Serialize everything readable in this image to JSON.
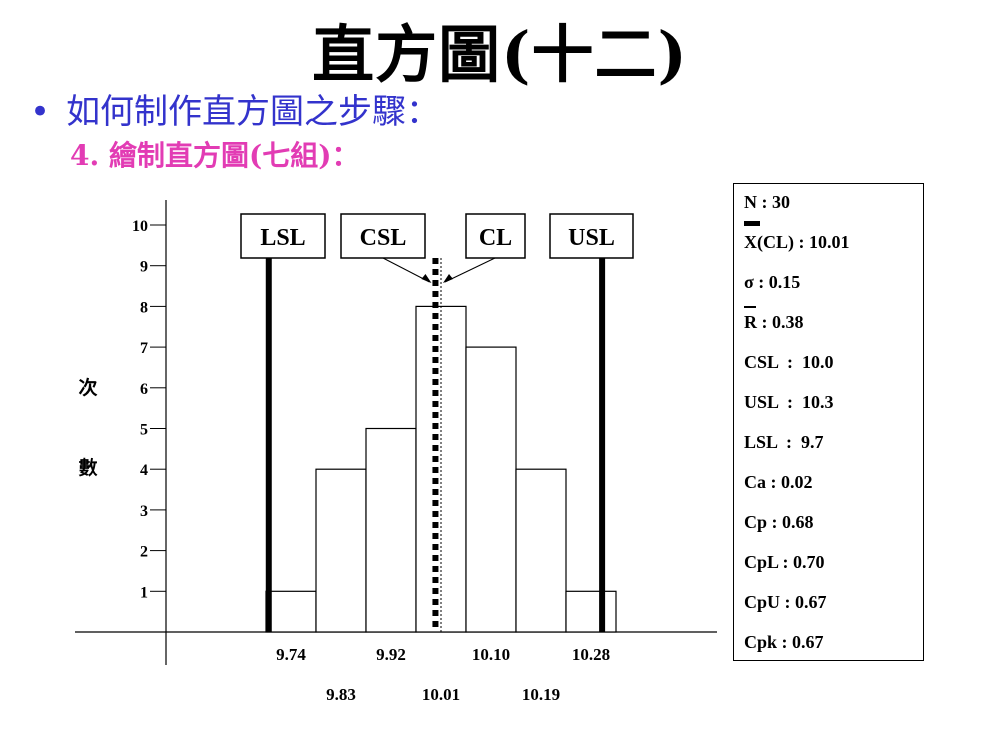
{
  "title": "直方圖(十二)",
  "bullet": "如何制作直方圖之步驟：",
  "subtitle": "4. 繪制直方圖(七組)：",
  "colors": {
    "bullet": "#3333cc",
    "subtitle": "#e23cb4"
  },
  "chart_data": {
    "type": "bar",
    "ylabel": [
      "次",
      "數"
    ],
    "yticks": [
      "1",
      "2",
      "3",
      "4",
      "5",
      "6",
      "7",
      "8",
      "9",
      "10"
    ],
    "ylim": [
      0,
      10
    ],
    "bins": [
      {
        "start": 9.695,
        "end": 9.785,
        "count": 1
      },
      {
        "start": 9.785,
        "end": 9.875,
        "count": 4
      },
      {
        "start": 9.875,
        "end": 9.965,
        "count": 5
      },
      {
        "start": 9.965,
        "end": 10.055,
        "count": 8
      },
      {
        "start": 10.055,
        "end": 10.145,
        "count": 7
      },
      {
        "start": 10.145,
        "end": 10.235,
        "count": 4
      },
      {
        "start": 10.235,
        "end": 10.325,
        "count": 1
      }
    ],
    "xlabels_upper": [
      "9.74",
      "9.92",
      "10.10",
      "10.28"
    ],
    "xlabels_lower": [
      "9.83",
      "10.01",
      "10.19"
    ],
    "reference_lines": [
      {
        "name": "LSL",
        "value": 9.7,
        "style": "thick"
      },
      {
        "name": "CSL",
        "value": 10.0,
        "style": "dashed"
      },
      {
        "name": "CL",
        "value": 10.01,
        "style": "dotted"
      },
      {
        "name": "USL",
        "value": 10.3,
        "style": "thick"
      }
    ]
  },
  "stats": [
    "N : 30",
    "X(CL) : 10.01",
    "σ : 0.15",
    "R : 0.38",
    "CSL  :  10.0",
    "USL  :  10.3",
    "LSL  :  9.7",
    "Ca : 0.02",
    "Cp : 0.68",
    "CpL : 0.70",
    "CpU : 0.67",
    "Cpk : 0.67"
  ]
}
